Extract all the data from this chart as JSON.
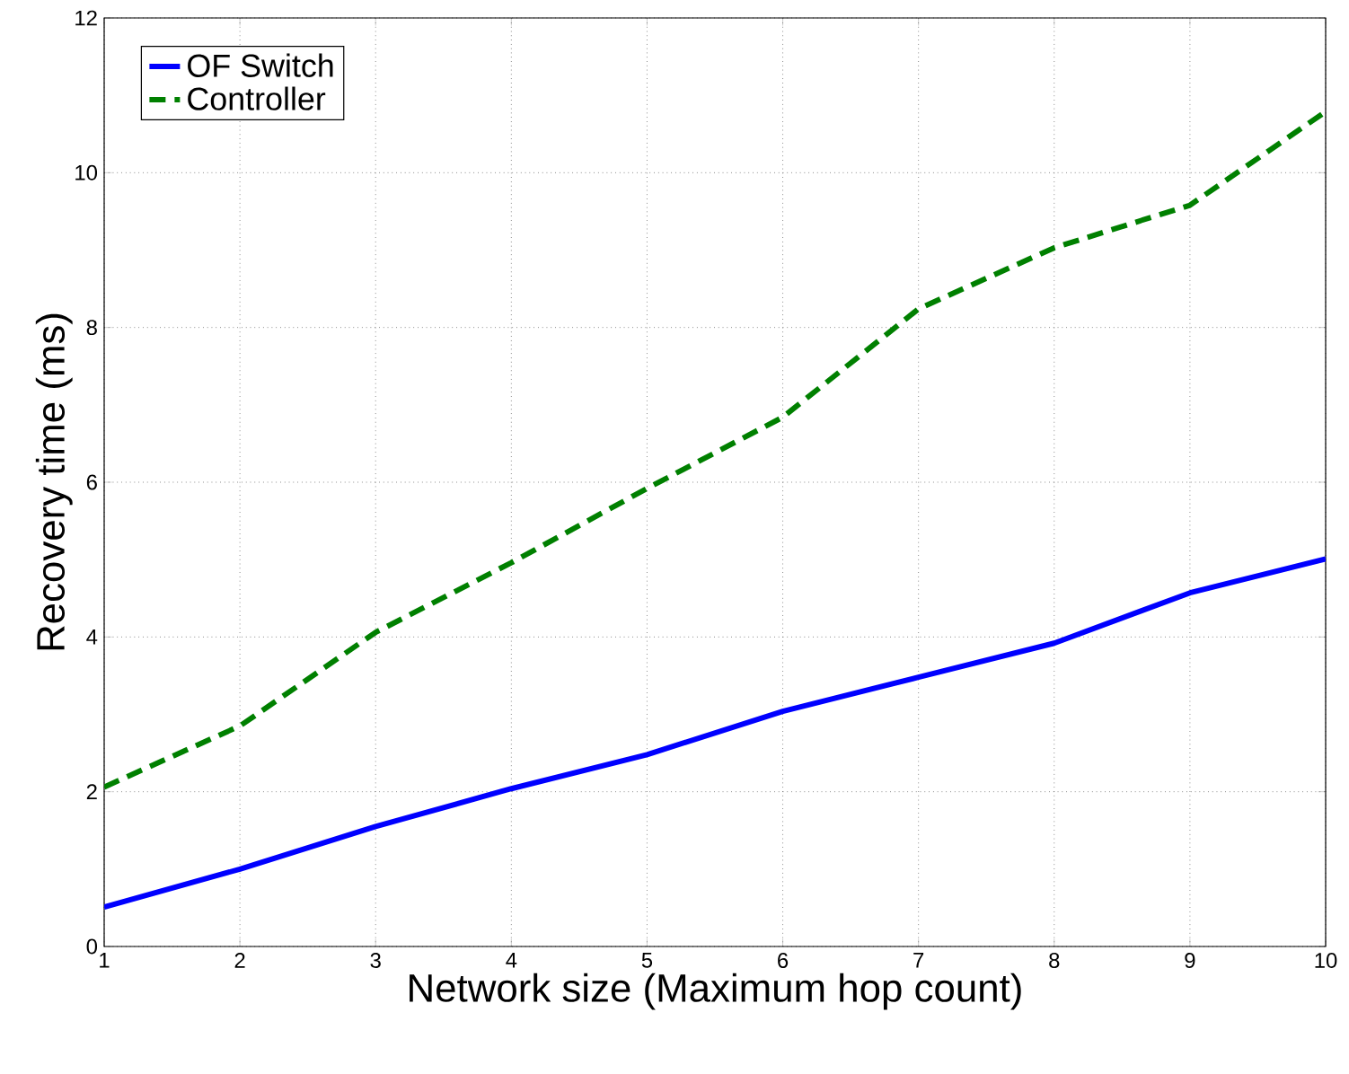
{
  "chart_data": {
    "type": "line",
    "xlabel": "Network size (Maximum hop count)",
    "ylabel": "Recovery time (ms)",
    "x": [
      1,
      2,
      3,
      4,
      5,
      6,
      7,
      8,
      9,
      10
    ],
    "series": [
      {
        "name": "OF Switch",
        "color": "#0000ff",
        "line_style": "solid",
        "values": [
          0.51,
          1.0,
          1.55,
          2.04,
          2.48,
          3.04,
          3.48,
          3.92,
          4.57,
          5.01
        ]
      },
      {
        "name": "Controller",
        "color": "#008000",
        "line_style": "dashed",
        "values": [
          2.06,
          2.85,
          4.06,
          4.96,
          5.92,
          6.84,
          8.24,
          9.03,
          9.58,
          10.79
        ]
      }
    ],
    "xlim": [
      1,
      10
    ],
    "ylim": [
      0,
      12
    ],
    "xticks": [
      1,
      2,
      3,
      4,
      5,
      6,
      7,
      8,
      9,
      10
    ],
    "yticks": [
      0,
      2,
      4,
      6,
      8,
      10,
      12
    ],
    "grid": true,
    "legend": "top left",
    "marker": "none"
  }
}
